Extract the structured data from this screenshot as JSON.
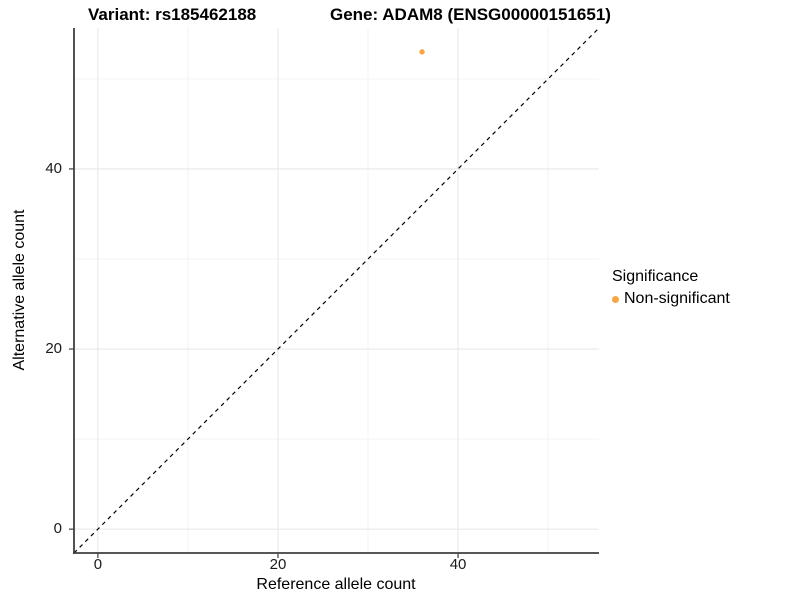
{
  "titles": {
    "variant": "Variant: rs185462188",
    "gene": "Gene: ADAM8 (ENSG00000151651)"
  },
  "axes": {
    "x_label": "Reference allele count",
    "y_label": "Alternative allele count"
  },
  "legend": {
    "title": "Significance",
    "items": [
      {
        "label": "Non-significant",
        "marker": "circle-icon",
        "color": "#F9A642"
      }
    ]
  },
  "chart_data": {
    "type": "scatter",
    "title": "Variant: rs185462188    Gene: ADAM8 (ENSG00000151651)",
    "xlabel": "Reference allele count",
    "ylabel": "Alternative allele count",
    "xlim": [
      -2.65,
      55.65
    ],
    "ylim": [
      -2.65,
      55.65
    ],
    "x_ticks": [
      0,
      20,
      40
    ],
    "y_ticks": [
      0,
      20,
      40
    ],
    "x_minor_ticks": [
      10,
      30,
      50
    ],
    "y_minor_ticks": [
      10,
      30,
      50
    ],
    "aspect": "equal",
    "grid": true,
    "legend_position": "right",
    "series": [
      {
        "name": "Non-significant",
        "color": "#F9A642",
        "points": [
          {
            "x": 36,
            "y": 53
          }
        ]
      }
    ],
    "reference_line": {
      "type": "identity",
      "label": "y = x",
      "style": "dashed",
      "color": "#000000"
    },
    "style_colors": {
      "grid_major": "#e8e8e8",
      "grid_minor": "#f3f3f3",
      "axis_line": "#3f3f3f",
      "tick_mark": "#3f3f3f",
      "background": "#ffffff"
    }
  }
}
